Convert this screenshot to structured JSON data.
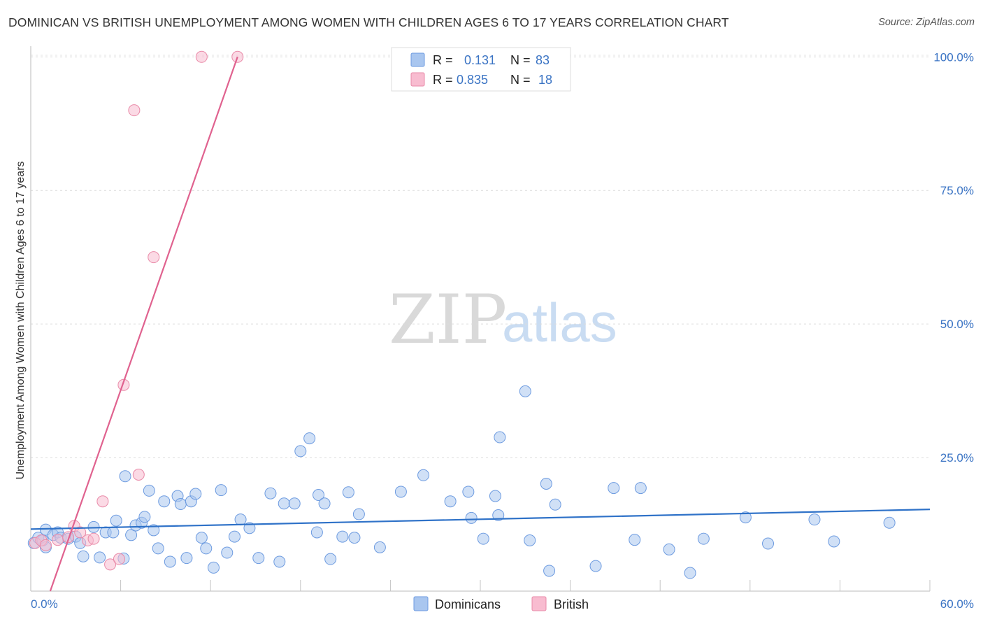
{
  "chart_data": {
    "type": "scatter",
    "title": "DOMINICAN VS BRITISH UNEMPLOYMENT AMONG WOMEN WITH CHILDREN AGES 6 TO 17 YEARS CORRELATION CHART",
    "source": "Source: ZipAtlas.com",
    "xlabel": "",
    "ylabel": "Unemployment Among Women with Children Ages 6 to 17 years",
    "xlim": [
      0,
      60
    ],
    "ylim": [
      0,
      102
    ],
    "x_tick_labels": [
      "0.0%",
      "60.0%"
    ],
    "y_ticks": [
      {
        "value": 25,
        "label": "25.0%"
      },
      {
        "value": 50,
        "label": "50.0%"
      },
      {
        "value": 75,
        "label": "75.0%"
      },
      {
        "value": 100,
        "label": "100.0%"
      }
    ],
    "watermark": {
      "zip": "ZIP",
      "atlas": "atlas"
    },
    "legend": {
      "r_label": "R =",
      "n_label": "N =",
      "entries": [
        {
          "name": "Dominicans",
          "r": "0.131",
          "n": "83",
          "color": "#a9c6ef",
          "stroke": "#6d9be0"
        },
        {
          "name": "British",
          "r": "0.835",
          "n": "18",
          "color": "#f8bcd0",
          "stroke": "#e98aa8"
        }
      ]
    },
    "series": [
      {
        "name": "Dominicans",
        "color": "#a9c6ef",
        "stroke": "#6d9be0",
        "trend": {
          "x": [
            0,
            60
          ],
          "y": [
            11.6,
            15.3
          ],
          "color": "#2f72c8"
        },
        "points": [
          [
            0.2,
            9.0
          ],
          [
            0.5,
            10.0
          ],
          [
            0.8,
            9.5
          ],
          [
            1.0,
            11.5
          ],
          [
            1.5,
            10.5
          ],
          [
            1.8,
            11.0
          ],
          [
            2.0,
            10.0
          ],
          [
            2.5,
            9.8
          ],
          [
            3.0,
            10.2
          ],
          [
            3.3,
            9.0
          ],
          [
            3.5,
            6.5
          ],
          [
            4.2,
            12.0
          ],
          [
            4.6,
            6.3
          ],
          [
            5.0,
            11.0
          ],
          [
            5.5,
            11.0
          ],
          [
            5.7,
            13.2
          ],
          [
            6.2,
            6.1
          ],
          [
            6.3,
            21.5
          ],
          [
            6.7,
            10.5
          ],
          [
            7.0,
            12.3
          ],
          [
            7.4,
            12.8
          ],
          [
            7.6,
            13.9
          ],
          [
            7.9,
            18.8
          ],
          [
            8.2,
            11.4
          ],
          [
            8.5,
            8.0
          ],
          [
            8.9,
            16.8
          ],
          [
            9.3,
            5.5
          ],
          [
            9.8,
            17.8
          ],
          [
            10.0,
            16.3
          ],
          [
            10.4,
            6.2
          ],
          [
            10.7,
            16.8
          ],
          [
            11.0,
            18.2
          ],
          [
            11.4,
            10.0
          ],
          [
            11.7,
            8.0
          ],
          [
            12.2,
            4.4
          ],
          [
            12.7,
            18.9
          ],
          [
            13.1,
            7.2
          ],
          [
            13.6,
            10.2
          ],
          [
            14.0,
            13.4
          ],
          [
            14.6,
            11.8
          ],
          [
            15.2,
            6.2
          ],
          [
            16.0,
            18.3
          ],
          [
            16.6,
            5.5
          ],
          [
            16.9,
            16.4
          ],
          [
            17.6,
            16.4
          ],
          [
            18.0,
            26.2
          ],
          [
            18.6,
            28.6
          ],
          [
            19.1,
            11.0
          ],
          [
            19.2,
            18.0
          ],
          [
            19.6,
            16.4
          ],
          [
            20.0,
            6.0
          ],
          [
            20.8,
            10.2
          ],
          [
            21.2,
            18.5
          ],
          [
            21.6,
            10.0
          ],
          [
            21.9,
            14.4
          ],
          [
            23.3,
            8.2
          ],
          [
            24.7,
            18.6
          ],
          [
            26.2,
            21.7
          ],
          [
            28.0,
            16.8
          ],
          [
            29.2,
            18.6
          ],
          [
            29.4,
            13.7
          ],
          [
            30.2,
            9.8
          ],
          [
            31.0,
            17.8
          ],
          [
            31.2,
            14.2
          ],
          [
            31.3,
            28.8
          ],
          [
            33.0,
            37.4
          ],
          [
            33.3,
            9.5
          ],
          [
            34.4,
            20.1
          ],
          [
            34.6,
            3.8
          ],
          [
            35.0,
            16.2
          ],
          [
            37.7,
            4.7
          ],
          [
            38.9,
            19.3
          ],
          [
            40.3,
            9.6
          ],
          [
            40.7,
            19.3
          ],
          [
            42.6,
            7.8
          ],
          [
            44.0,
            3.4
          ],
          [
            44.9,
            9.8
          ],
          [
            47.7,
            13.8
          ],
          [
            49.2,
            8.9
          ],
          [
            52.3,
            13.4
          ],
          [
            53.6,
            9.3
          ],
          [
            57.3,
            12.8
          ],
          [
            1.0,
            8.2
          ]
        ]
      },
      {
        "name": "British",
        "color": "#f8bcd0",
        "stroke": "#e98aa8",
        "trend": {
          "x": [
            1.3,
            13.8
          ],
          "y": [
            0,
            100
          ],
          "color": "#e0628f"
        },
        "points": [
          [
            0.3,
            9.0
          ],
          [
            0.7,
            9.5
          ],
          [
            1.0,
            8.6
          ],
          [
            1.8,
            9.6
          ],
          [
            2.5,
            10.1
          ],
          [
            2.9,
            12.2
          ],
          [
            3.3,
            11.0
          ],
          [
            3.8,
            9.5
          ],
          [
            4.2,
            9.8
          ],
          [
            4.8,
            16.8
          ],
          [
            5.3,
            5.0
          ],
          [
            5.9,
            6.0
          ],
          [
            6.2,
            38.6
          ],
          [
            6.9,
            90.0
          ],
          [
            7.2,
            21.8
          ],
          [
            8.2,
            62.5
          ],
          [
            11.4,
            100.0
          ],
          [
            13.8,
            100.0
          ]
        ]
      }
    ]
  }
}
